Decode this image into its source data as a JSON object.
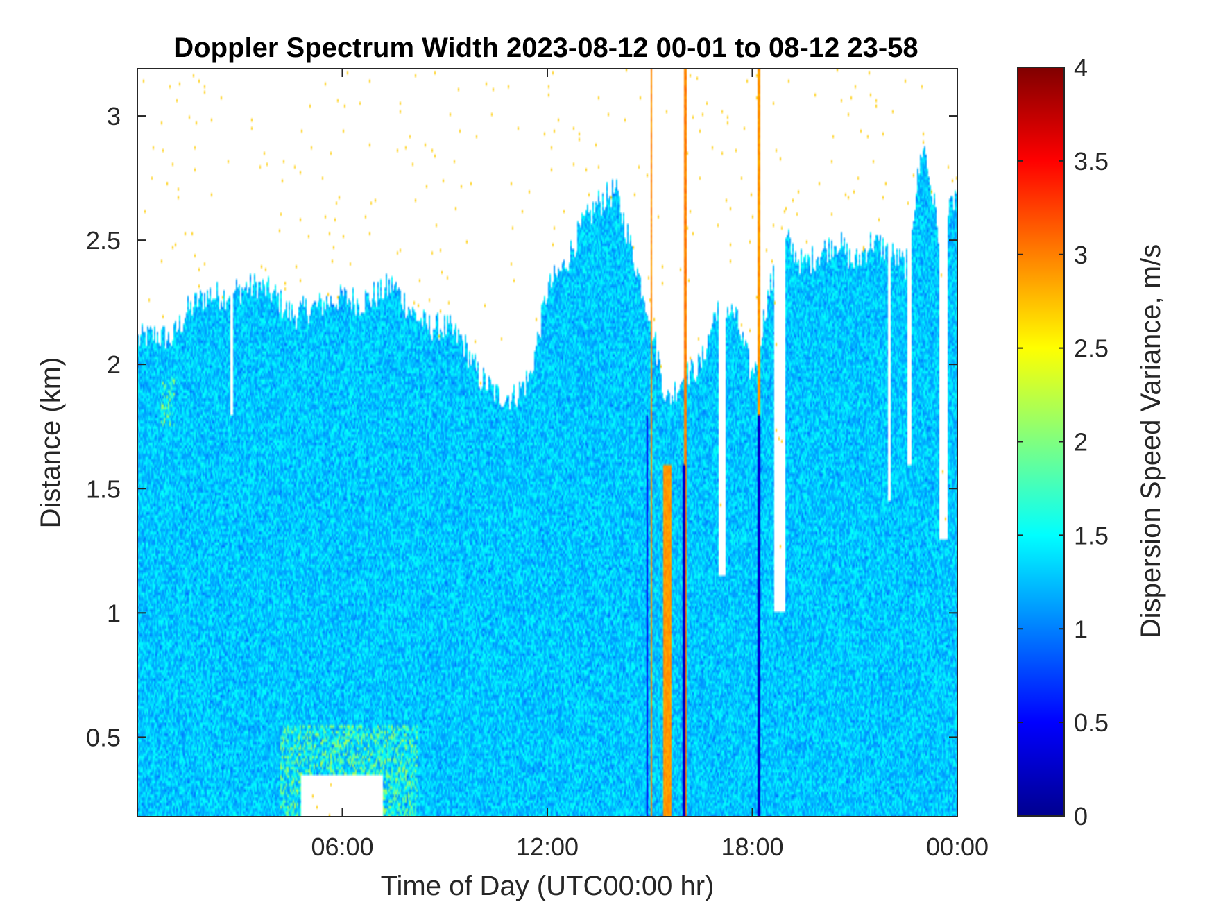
{
  "chart_data": {
    "type": "heatmap",
    "title": "Doppler Spectrum Width 2023-08-12 00-01 to 08-12 23-58",
    "xlabel": "Time of Day (UTC00:00 hr)",
    "ylabel": "Distance (km)",
    "xlim": [
      0,
      24
    ],
    "ylim": [
      0.18,
      3.19
    ],
    "x_ticks": [
      6,
      12,
      18,
      24
    ],
    "x_tick_labels": [
      "06:00",
      "12:00",
      "18:00",
      "00:00"
    ],
    "y_ticks": [
      0.5,
      1,
      1.5,
      2,
      2.5,
      3
    ],
    "y_tick_labels": [
      "0.5",
      "1",
      "1.5",
      "2",
      "2.5",
      "3"
    ],
    "colorbar": {
      "label": "Dispersion Speed Variance, m/s",
      "range": [
        0,
        4
      ],
      "ticks": [
        0,
        0.5,
        1,
        1.5,
        2,
        2.5,
        3,
        3.5,
        4
      ],
      "tick_labels": [
        "0",
        "0.5",
        "1",
        "1.5",
        "2",
        "2.5",
        "3",
        "3.5",
        "4"
      ],
      "colormap": "jet"
    },
    "typical_value": 1.3,
    "signal_top_km": {
      "hours": [
        0.0,
        0.5,
        1.0,
        1.5,
        2.0,
        2.5,
        3.0,
        3.5,
        4.0,
        4.5,
        5.0,
        5.5,
        6.0,
        6.5,
        7.0,
        7.5,
        8.0,
        8.5,
        9.0,
        9.5,
        10.0,
        10.5,
        11.0,
        11.5,
        12.0,
        12.5,
        13.0,
        13.5,
        14.0,
        14.5,
        15.0,
        15.5,
        16.0,
        16.5,
        17.0,
        17.5,
        18.0,
        18.5,
        19.0,
        19.5,
        20.0,
        20.5,
        21.0,
        21.5,
        22.0,
        22.5,
        23.0,
        23.5,
        24.0
      ],
      "top": [
        2.1,
        2.12,
        2.1,
        2.22,
        2.28,
        2.28,
        2.3,
        2.32,
        2.28,
        2.2,
        2.22,
        2.25,
        2.27,
        2.25,
        2.28,
        2.32,
        2.22,
        2.15,
        2.15,
        2.1,
        1.95,
        1.88,
        1.87,
        1.95,
        2.3,
        2.4,
        2.55,
        2.65,
        2.7,
        2.45,
        2.2,
        1.85,
        1.95,
        2.0,
        2.25,
        2.2,
        1.95,
        2.3,
        2.5,
        2.4,
        2.45,
        2.5,
        2.4,
        2.5,
        2.45,
        2.4,
        2.9,
        2.5,
        2.7
      ]
    },
    "features": [
      {
        "type": "column",
        "x": 15.5,
        "half_width": 0.12,
        "y_from": 0.18,
        "y_to": 1.6,
        "value": 2.9
      },
      {
        "type": "column",
        "x": 16.06,
        "half_width": 0.04,
        "y_from": 0.18,
        "y_to": 3.19,
        "value": 3.0
      },
      {
        "type": "column",
        "x": 15.05,
        "half_width": 0.03,
        "y_from": 0.18,
        "y_to": 3.19,
        "value": 2.95
      },
      {
        "type": "column",
        "x": 18.2,
        "half_width": 0.03,
        "y_from": 0.18,
        "y_to": 3.19,
        "value": 2.9
      },
      {
        "type": "column",
        "x": 14.92,
        "half_width": 0.03,
        "y_from": 0.18,
        "y_to": 1.8,
        "value": 0.5
      },
      {
        "type": "column",
        "x": 16.0,
        "half_width": 0.03,
        "y_from": 0.18,
        "y_to": 1.6,
        "value": 0.3
      },
      {
        "type": "column",
        "x": 18.2,
        "half_width": 0.03,
        "y_from": 0.18,
        "y_to": 1.8,
        "value": 0.3
      },
      {
        "type": "gap",
        "x": 17.1,
        "half_width": 0.1,
        "y_from": 1.15,
        "y_to": 3.19
      },
      {
        "type": "gap",
        "x": 18.8,
        "half_width": 0.18,
        "y_from": 1.0,
        "y_to": 3.19
      },
      {
        "type": "gap",
        "x": 22.0,
        "half_width": 0.05,
        "y_from": 1.45,
        "y_to": 3.19
      },
      {
        "type": "gap",
        "x": 22.6,
        "half_width": 0.08,
        "y_from": 1.6,
        "y_to": 3.19
      },
      {
        "type": "gap",
        "x": 23.6,
        "half_width": 0.12,
        "y_from": 1.3,
        "y_to": 3.19
      },
      {
        "type": "gap",
        "x": 2.75,
        "half_width": 0.04,
        "y_from": 1.8,
        "y_to": 3.19
      },
      {
        "type": "gap",
        "x": 6.0,
        "half_width": 1.2,
        "y_from": 0.18,
        "y_to": 0.35
      },
      {
        "type": "blob",
        "x": 6.2,
        "half_width": 2.0,
        "y_from": 0.18,
        "y_to": 0.55,
        "value": 1.9
      },
      {
        "type": "blob",
        "x": 0.9,
        "half_width": 0.2,
        "y_from": 1.75,
        "y_to": 1.95,
        "value": 1.9
      }
    ]
  }
}
